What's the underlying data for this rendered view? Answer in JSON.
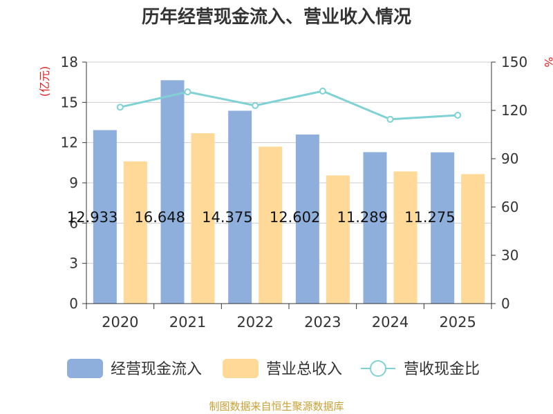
{
  "colors": {
    "cashflow": "#8eaedc",
    "revenue": "#fed998",
    "ratio": "#7fd2d4",
    "unit": "#e02020",
    "grid": "#cccccc",
    "axis": "#333333",
    "text": "#333333",
    "source": "#c8a033"
  },
  "chart_data": {
    "type": "bar",
    "title": "历年经营现金流入、营业收入情况",
    "categories": [
      "2020",
      "2021",
      "2022",
      "2023",
      "2024",
      "2025"
    ],
    "left_axis": {
      "unit": "(亿元)",
      "ylim": [
        0,
        18
      ],
      "ticks": [
        0,
        3,
        6,
        9,
        12,
        15,
        18
      ]
    },
    "right_axis": {
      "unit": "%",
      "ylim": [
        0,
        150
      ],
      "ticks": [
        0,
        30,
        60,
        90,
        120,
        150
      ]
    },
    "series": [
      {
        "name": "经营现金流入",
        "type": "bar",
        "axis": "left",
        "values": [
          12.933,
          16.648,
          14.375,
          12.602,
          11.289,
          11.275
        ],
        "labels": [
          "12.933",
          "16.648",
          "14.375",
          "12.602",
          "11.289",
          "11.275"
        ]
      },
      {
        "name": "营业总收入",
        "type": "bar",
        "axis": "left",
        "values": [
          10.6,
          12.7,
          11.7,
          9.55,
          9.85,
          9.65
        ]
      },
      {
        "name": "营收现金比",
        "type": "line",
        "axis": "right",
        "values": [
          122,
          131.5,
          123,
          132,
          114.5,
          117
        ]
      }
    ],
    "grid": true,
    "legend_position": "bottom"
  },
  "source": "制图数据来自恒生聚源数据库"
}
